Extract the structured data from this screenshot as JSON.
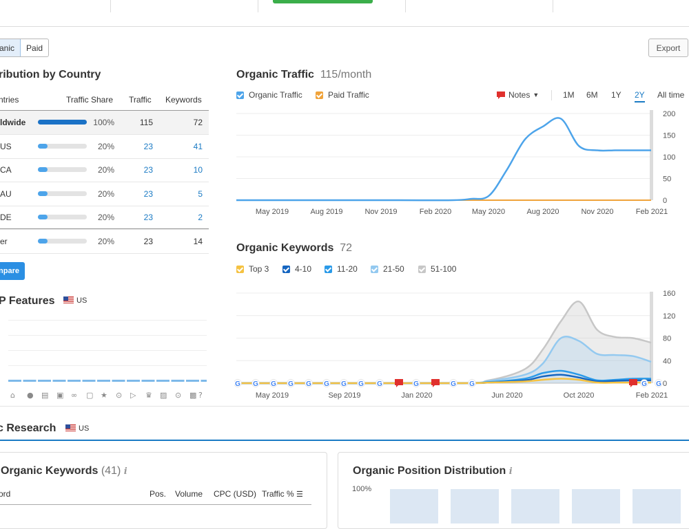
{
  "toggle": {
    "organic": "anic",
    "paid": "Paid"
  },
  "export_label": "Export",
  "dist": {
    "title": "ribution by Country",
    "headers": {
      "countries": "ntries",
      "share": "Traffic Share",
      "traffic": "Traffic",
      "keywords": "Keywords"
    },
    "rows": [
      {
        "name": "ldwide",
        "share": "100%",
        "share_frac": 1.0,
        "traffic": "115",
        "keywords": "72"
      },
      {
        "name": "US",
        "share": "20%",
        "share_frac": 0.2,
        "traffic": "23",
        "keywords": "41"
      },
      {
        "name": "CA",
        "share": "20%",
        "share_frac": 0.2,
        "traffic": "23",
        "keywords": "10"
      },
      {
        "name": "AU",
        "share": "20%",
        "share_frac": 0.2,
        "traffic": "23",
        "keywords": "5"
      },
      {
        "name": "DE",
        "share": "20%",
        "share_frac": 0.2,
        "traffic": "23",
        "keywords": "2"
      },
      {
        "name": "er",
        "share": "20%",
        "share_frac": 0.2,
        "traffic": "23",
        "keywords": "14"
      }
    ],
    "compare_label": "npare"
  },
  "serp": {
    "title": "P Features",
    "country": "US"
  },
  "traffic_chart": {
    "title": "Organic Traffic",
    "subtitle": "115/month",
    "legend": [
      "Organic Traffic",
      "Paid Traffic"
    ],
    "notes_label": "Notes",
    "ranges": [
      "1M",
      "6M",
      "1Y",
      "2Y",
      "All time"
    ],
    "selected_range": "2Y"
  },
  "keywords_chart": {
    "title": "Organic Keywords",
    "subtitle": "72",
    "legend": [
      "Top 3",
      "4-10",
      "11-20",
      "21-50",
      "51-100"
    ]
  },
  "research": {
    "title": "c Research",
    "country": "US"
  },
  "top_keywords": {
    "title": "Organic Keywords",
    "count": "(41)",
    "headers": {
      "keyword": "ord",
      "pos": "Pos.",
      "volume": "Volume",
      "cpc": "CPC (USD)",
      "traffic": "Traffic %"
    }
  },
  "position_dist": {
    "title": "Organic Position Distribution",
    "y_label": "100%"
  },
  "colors": {
    "organic": "#4da4ea",
    "paid": "#f0a33a",
    "top3": "#f5c242",
    "k4_10": "#1565c0",
    "k11_20": "#2a9ae8",
    "k21_50": "#93c9f0",
    "k51_100": "#c7c7c7"
  },
  "chart_data": [
    {
      "type": "line",
      "title": "Organic Traffic",
      "x_ticks": [
        "May 2019",
        "Aug 2019",
        "Nov 2019",
        "Feb 2020",
        "May 2020",
        "Aug 2020",
        "Nov 2020",
        "Feb 2021"
      ],
      "y_ticks": [
        0,
        50,
        100,
        150,
        200
      ],
      "ylim": [
        0,
        200
      ],
      "series": [
        {
          "name": "Organic Traffic",
          "x": [
            "2019-03",
            "2019-06",
            "2019-09",
            "2019-12",
            "2020-03",
            "2020-04",
            "2020-05",
            "2020-06",
            "2020-07",
            "2020-08",
            "2020-09",
            "2020-10",
            "2020-11",
            "2020-12",
            "2021-01",
            "2021-02"
          ],
          "values": [
            0,
            0,
            0,
            0,
            0,
            3,
            10,
            70,
            140,
            170,
            188,
            125,
            115,
            115,
            115,
            115
          ]
        },
        {
          "name": "Paid Traffic",
          "x": [
            "2019-03",
            "2020-04",
            "2021-02"
          ],
          "values": [
            0,
            0,
            0
          ]
        }
      ]
    },
    {
      "type": "area",
      "title": "Organic Keywords",
      "x_ticks": [
        "May 2019",
        "Sep 2019",
        "Jan 2020",
        "Jun 2020",
        "Oct 2020",
        "Feb 2021"
      ],
      "y_ticks": [
        0,
        40,
        80,
        120,
        160
      ],
      "ylim": [
        0,
        160
      ],
      "series": [
        {
          "name": "51-100",
          "x": [
            "2020-03",
            "2020-05",
            "2020-07",
            "2020-08",
            "2020-09",
            "2020-10",
            "2020-11",
            "2020-12",
            "2021-01",
            "2021-02"
          ],
          "values": [
            0,
            5,
            25,
            60,
            110,
            145,
            95,
            82,
            80,
            72
          ]
        },
        {
          "name": "21-50",
          "x": [
            "2020-03",
            "2020-05",
            "2020-07",
            "2020-08",
            "2020-09",
            "2020-10",
            "2020-11",
            "2020-12",
            "2021-01",
            "2021-02"
          ],
          "values": [
            0,
            4,
            15,
            35,
            80,
            75,
            52,
            50,
            48,
            38
          ]
        },
        {
          "name": "11-20",
          "x": [
            "2020-03",
            "2020-05",
            "2020-07",
            "2020-08",
            "2020-09",
            "2020-10",
            "2020-11",
            "2020-12",
            "2021-01",
            "2021-02"
          ],
          "values": [
            0,
            2,
            8,
            18,
            22,
            15,
            5,
            6,
            8,
            8
          ]
        },
        {
          "name": "4-10",
          "x": [
            "2020-03",
            "2020-05",
            "2020-07",
            "2020-08",
            "2020-09",
            "2020-10",
            "2020-11",
            "2020-12",
            "2021-01",
            "2021-02"
          ],
          "values": [
            0,
            1,
            5,
            12,
            15,
            10,
            3,
            4,
            5,
            5
          ]
        },
        {
          "name": "Top 3",
          "x": [
            "2020-03",
            "2020-05",
            "2020-07",
            "2020-08",
            "2020-09",
            "2020-10",
            "2020-11",
            "2020-12",
            "2021-01",
            "2021-02"
          ],
          "values": [
            0,
            1,
            3,
            6,
            8,
            6,
            1,
            1,
            1,
            1
          ]
        }
      ]
    }
  ]
}
